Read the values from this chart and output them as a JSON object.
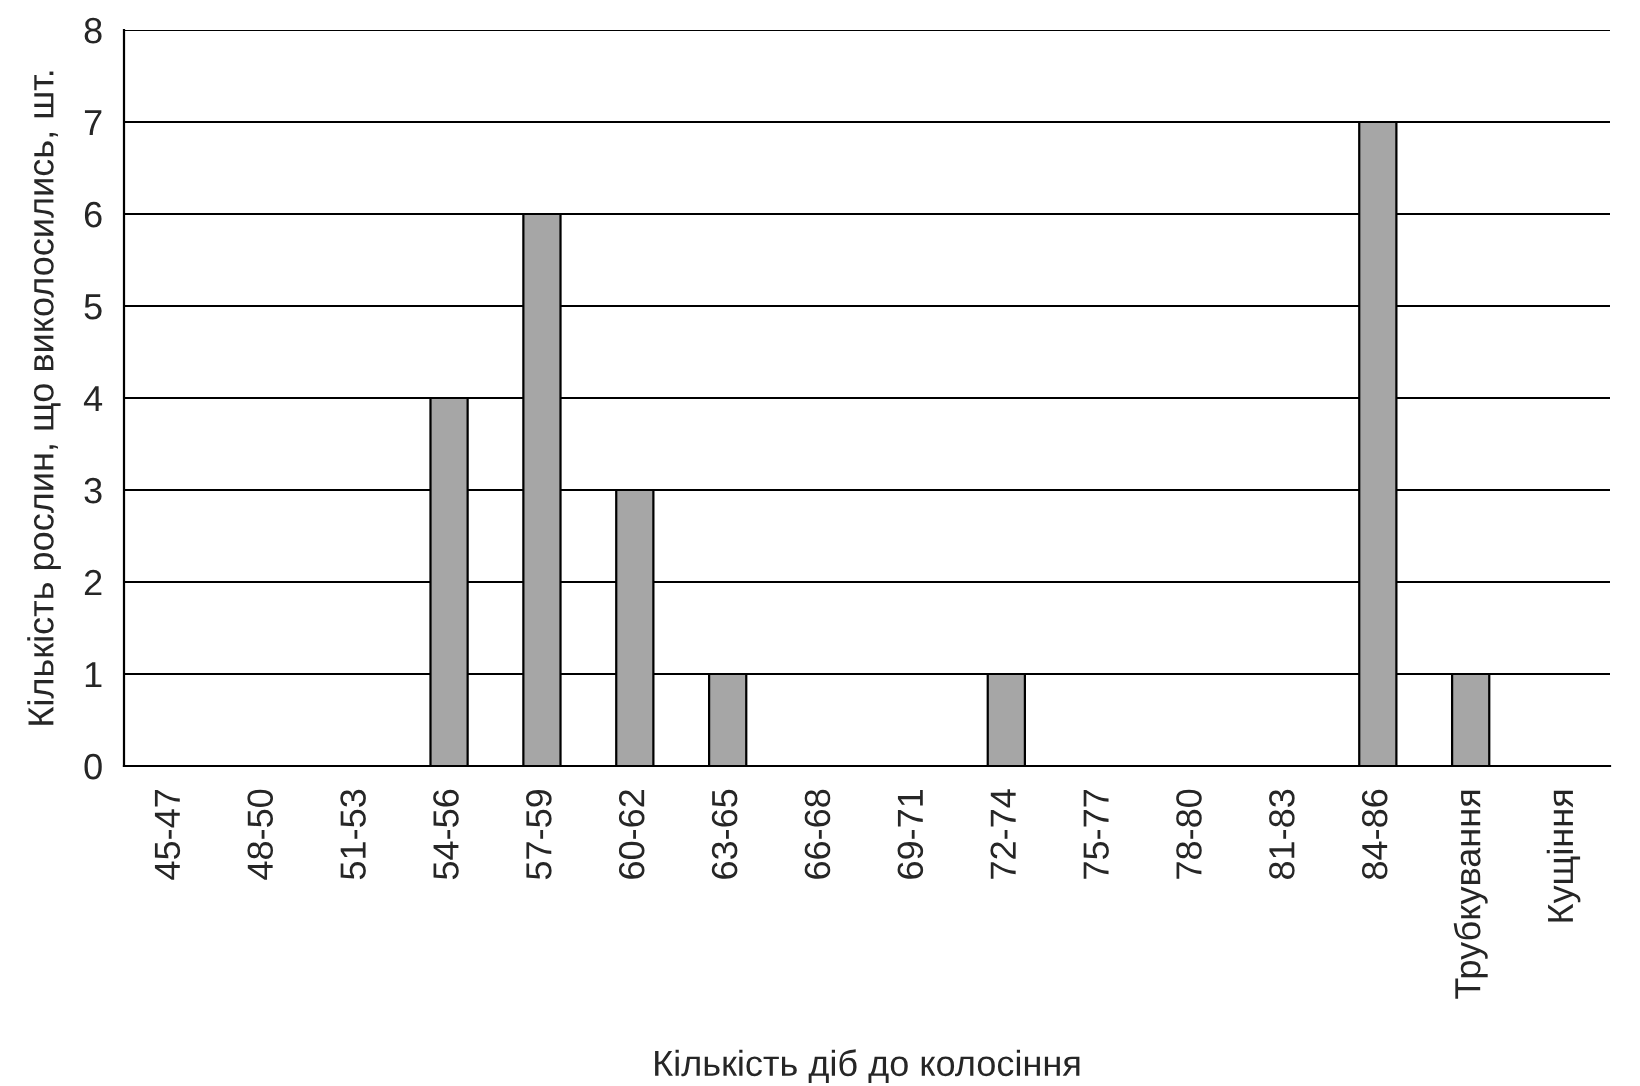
{
  "chart_data": {
    "type": "bar",
    "categories": [
      "45-47",
      "48-50",
      "51-53",
      "54-56",
      "57-59",
      "60-62",
      "63-65",
      "66-68",
      "69-71",
      "72-74",
      "75-77",
      "78-80",
      "81-83",
      "84-86",
      "Трубкування",
      "Кущіння"
    ],
    "values": [
      0,
      0,
      0,
      4,
      6,
      3,
      1,
      0,
      0,
      1,
      0,
      0,
      0,
      7,
      1,
      0
    ],
    "color": "#a6a6a6",
    "xlabel": "Кількість діб до колосіння",
    "ylabel": "Кількість рослин, що виколосились, шт.",
    "ylim": [
      0,
      8
    ],
    "yticks": [
      0,
      1,
      2,
      3,
      4,
      5,
      6,
      7,
      8
    ],
    "grid": "y",
    "legend": false
  }
}
